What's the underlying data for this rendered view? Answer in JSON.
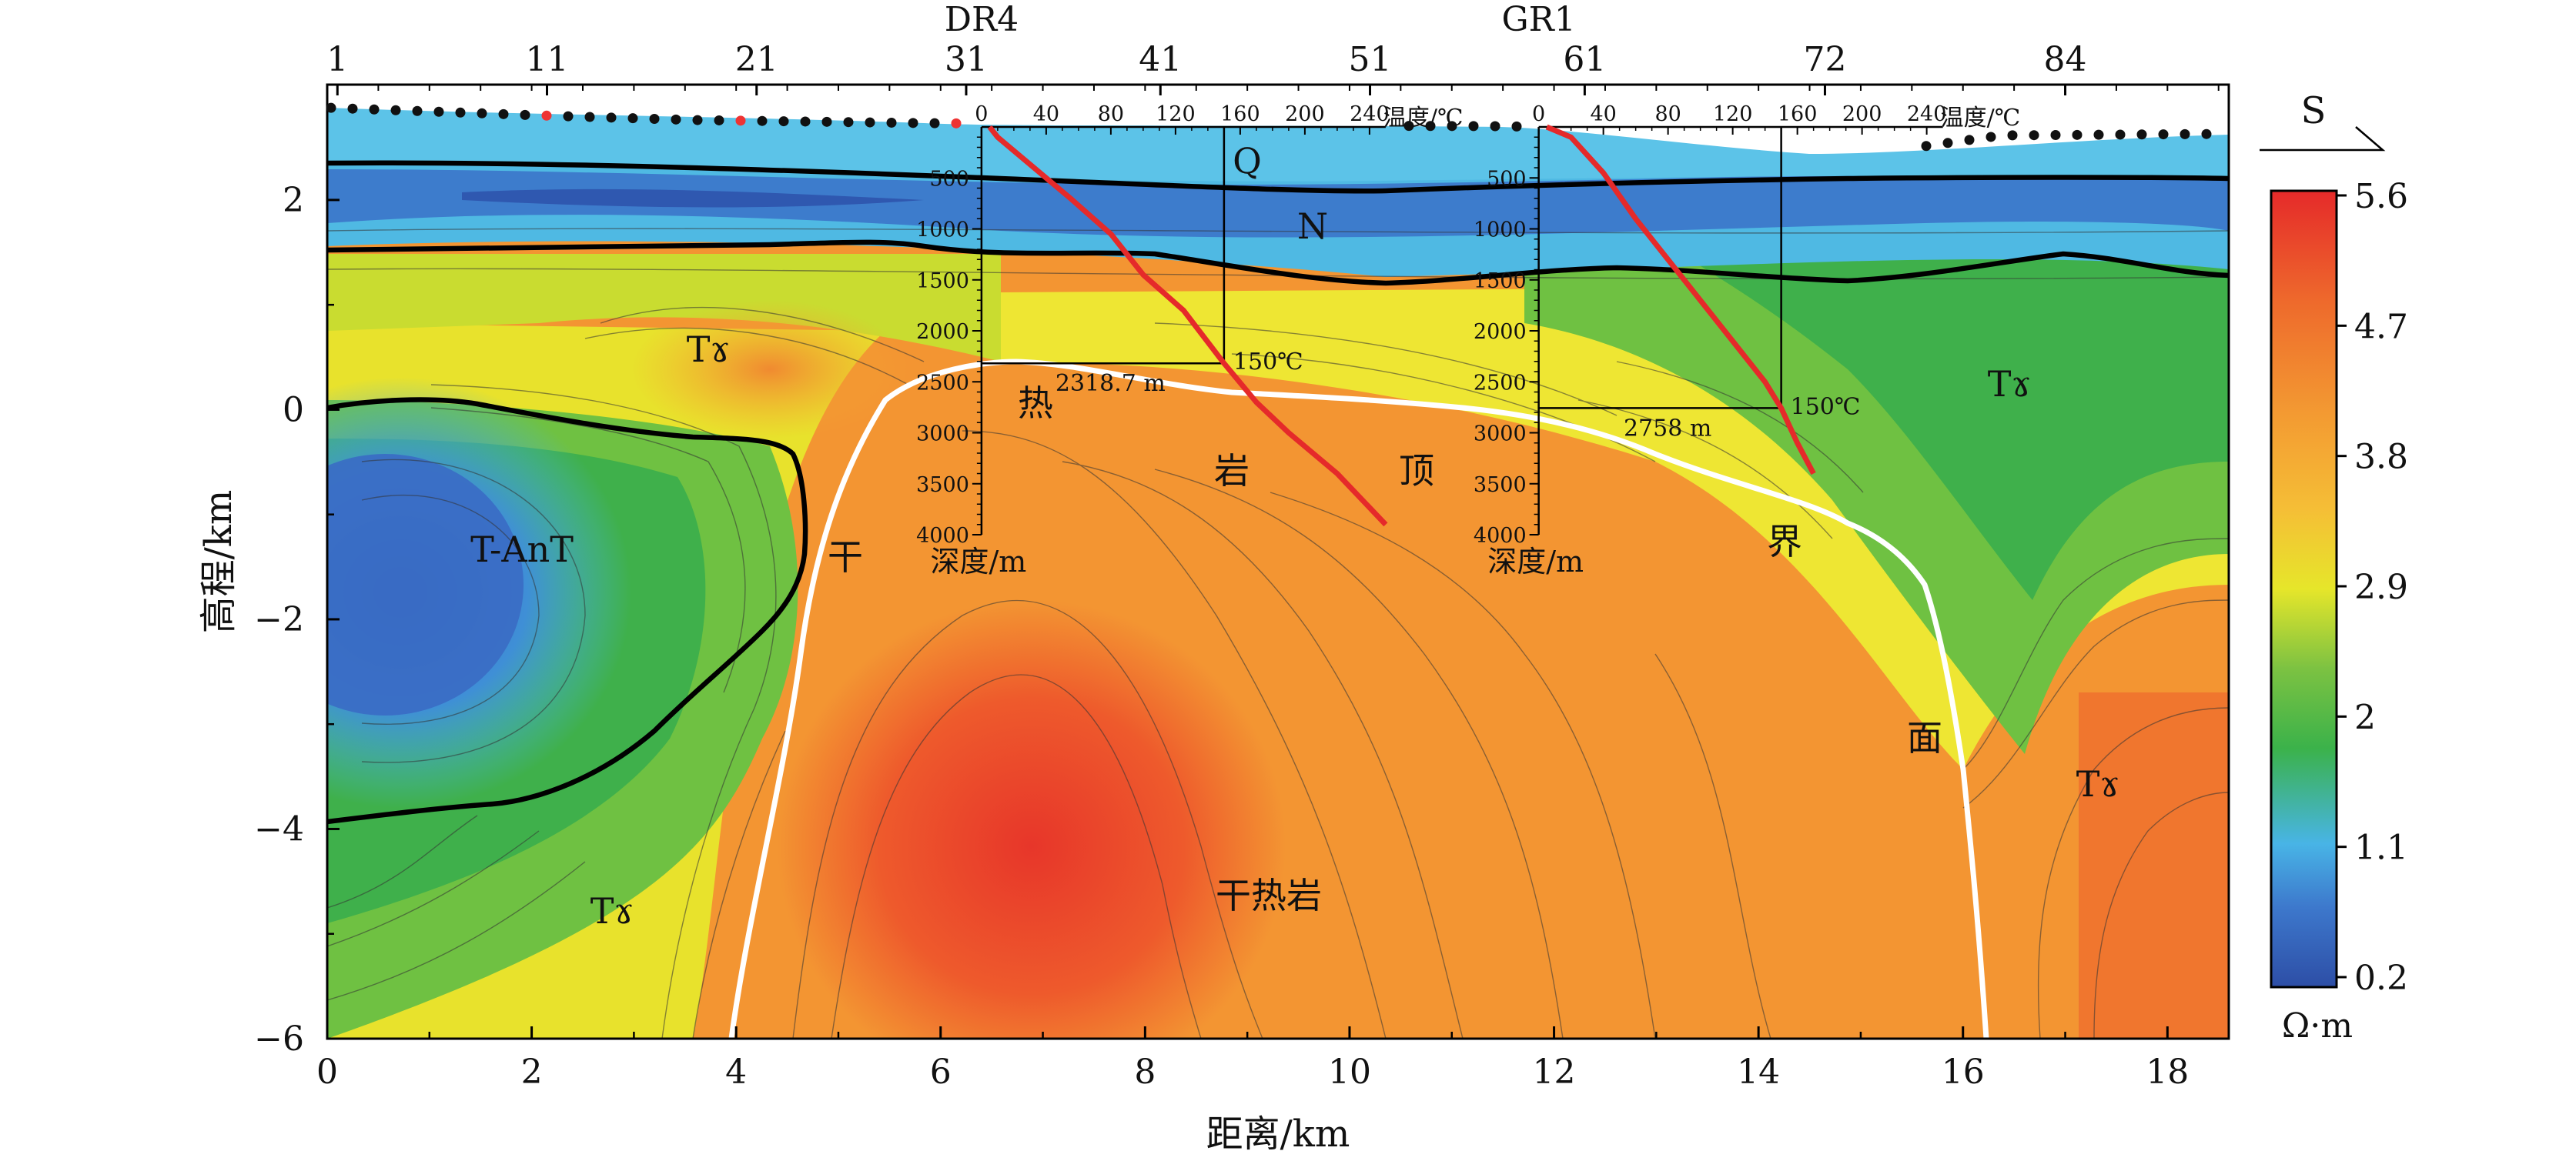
{
  "chart_data": {
    "type": "heatmap",
    "title": "",
    "xlabel": "距离/km",
    "ylabel": "高程/km",
    "xlim": [
      0,
      18.6
    ],
    "ylim": [
      -6,
      3.1
    ],
    "x_ticks": [
      0,
      2,
      4,
      6,
      8,
      10,
      12,
      14,
      16,
      18
    ],
    "y_ticks": [
      2,
      0,
      -2,
      -4,
      -6
    ],
    "y_tick_labels": [
      "2",
      "0",
      "−2",
      "−4",
      "−6"
    ],
    "station_labels": [
      {
        "label": "1",
        "x": 0.1
      },
      {
        "label": "11",
        "x": 2.15
      },
      {
        "label": "21",
        "x": 4.2
      },
      {
        "label": "31",
        "x": 6.25
      },
      {
        "label": "41",
        "x": 8.15
      },
      {
        "label": "51",
        "x": 10.2
      },
      {
        "label": "61",
        "x": 12.3
      },
      {
        "label": "72",
        "x": 14.65
      },
      {
        "label": "84",
        "x": 17.0
      }
    ],
    "orientation_label": "S",
    "colorbar": {
      "unit": "Ω·m",
      "tick_labels": [
        "5.6",
        "4.7",
        "3.8",
        "2.9",
        "2",
        "1.1",
        "0.2"
      ]
    },
    "wells": [
      {
        "name": "DR4",
        "x_km": 6.4,
        "temp_axis_label": "温度/℃",
        "temp_ticks": [
          "0",
          "40",
          "80",
          "120",
          "160",
          "200",
          "240"
        ],
        "depth_axis_label": "深度/m",
        "depth_ticks": [
          "500",
          "1000",
          "1500",
          "2000",
          "2500",
          "3000",
          "3500",
          "4000"
        ],
        "isotherm_label": "150℃",
        "isotherm_depth_label": "2318.7 m",
        "isotherm_depth_m": 2318.7,
        "temperature_profile": [
          [
            5,
            0
          ],
          [
            10,
            100
          ],
          [
            25,
            300
          ],
          [
            55,
            700
          ],
          [
            80,
            1050
          ],
          [
            100,
            1450
          ],
          [
            125,
            1800
          ],
          [
            150,
            2318.7
          ],
          [
            170,
            2700
          ],
          [
            190,
            3000
          ],
          [
            220,
            3400
          ],
          [
            250,
            3900
          ]
        ]
      },
      {
        "name": "GR1",
        "x_km": 11.85,
        "temp_axis_label": "温度/℃",
        "temp_ticks": [
          "0",
          "40",
          "80",
          "120",
          "160",
          "200",
          "240"
        ],
        "depth_axis_label": "深度/m",
        "depth_ticks": [
          "500",
          "1000",
          "1500",
          "2000",
          "2500",
          "3000",
          "3500",
          "4000"
        ],
        "isotherm_label": "150℃",
        "isotherm_depth_label": "2758 m",
        "isotherm_depth_m": 2758,
        "temperature_profile": [
          [
            5,
            0
          ],
          [
            20,
            100
          ],
          [
            40,
            450
          ],
          [
            60,
            900
          ],
          [
            80,
            1300
          ],
          [
            100,
            1700
          ],
          [
            120,
            2100
          ],
          [
            140,
            2500
          ],
          [
            150,
            2758
          ],
          [
            160,
            3100
          ],
          [
            170,
            3400
          ]
        ]
      }
    ],
    "unit_labels": [
      "Q",
      "N",
      "Tɤ",
      "Tɤ",
      "Tɤ",
      "Tɤ",
      "T-AnT",
      "干热岩"
    ],
    "boundary_labels": [
      "干",
      "热",
      "岩",
      "顶",
      "界",
      "面"
    ]
  }
}
